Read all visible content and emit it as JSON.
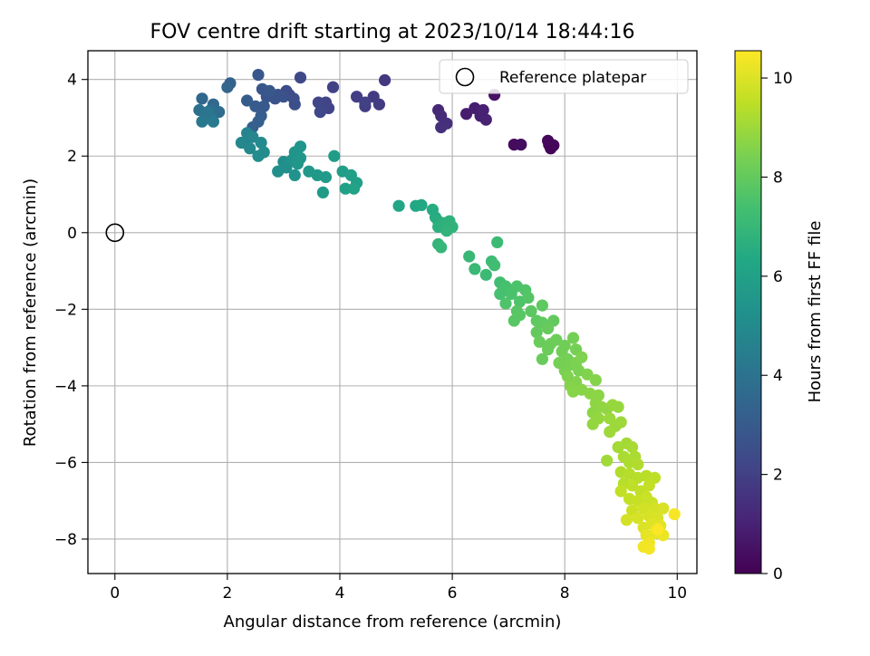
{
  "chart_data": {
    "type": "scatter",
    "title": "FOV centre drift starting at 2023/10/14 18:44:16",
    "xlabel": "Angular distance from reference (arcmin)",
    "ylabel": "Rotation from reference (arcmin)",
    "xlim": [
      -0.48,
      10.35
    ],
    "ylim": [
      -8.9,
      4.75
    ],
    "xticks": [
      0,
      2,
      4,
      6,
      8,
      10
    ],
    "yticks": [
      -8,
      -6,
      -4,
      -2,
      0,
      2,
      4
    ],
    "grid": true,
    "legend": {
      "position": "top-right",
      "entries": [
        "Reference platepar"
      ]
    },
    "reference": {
      "x": 0,
      "y": 0
    },
    "colorbar": {
      "label": "Hours from first FF file",
      "range": [
        0,
        10.55
      ],
      "ticks": [
        0,
        2,
        4,
        6,
        8,
        10
      ],
      "colormap": "viridis"
    },
    "points": [
      [
        7.72,
        2.3,
        0.1
      ],
      [
        7.75,
        2.2,
        0.12
      ],
      [
        7.8,
        2.28,
        0.15
      ],
      [
        7.7,
        2.4,
        0.2
      ],
      [
        7.1,
        2.3,
        0.3
      ],
      [
        7.22,
        2.3,
        0.35
      ],
      [
        6.75,
        3.6,
        0.5
      ],
      [
        6.25,
        3.1,
        0.8
      ],
      [
        6.5,
        3.05,
        0.9
      ],
      [
        6.6,
        2.95,
        1.0
      ],
      [
        6.4,
        3.25,
        0.85
      ],
      [
        6.55,
        3.2,
        0.95
      ],
      [
        5.75,
        3.2,
        1.2
      ],
      [
        5.8,
        3.05,
        1.3
      ],
      [
        5.9,
        2.85,
        1.4
      ],
      [
        5.8,
        2.75,
        1.45
      ],
      [
        4.8,
        3.98,
        1.7
      ],
      [
        4.6,
        3.55,
        1.8
      ],
      [
        4.7,
        3.35,
        1.85
      ],
      [
        4.45,
        3.3,
        1.9
      ],
      [
        4.3,
        3.55,
        1.95
      ],
      [
        4.45,
        3.4,
        2.0
      ],
      [
        3.88,
        3.8,
        2.05
      ],
      [
        3.75,
        3.4,
        2.1
      ],
      [
        3.8,
        3.25,
        2.15
      ],
      [
        3.62,
        3.4,
        2.2
      ],
      [
        3.65,
        3.15,
        2.25
      ],
      [
        3.3,
        4.05,
        2.3
      ],
      [
        3.1,
        3.6,
        2.4
      ],
      [
        3.05,
        3.7,
        2.45
      ],
      [
        3.18,
        3.5,
        2.5
      ],
      [
        3.2,
        3.35,
        2.55
      ],
      [
        3.0,
        3.55,
        2.6
      ],
      [
        2.9,
        3.6,
        2.65
      ],
      [
        2.85,
        3.5,
        2.7
      ],
      [
        2.7,
        3.55,
        2.75
      ],
      [
        2.62,
        3.75,
        2.8
      ],
      [
        2.55,
        4.12,
        2.85
      ],
      [
        2.75,
        3.7,
        2.9
      ],
      [
        2.65,
        3.3,
        2.95
      ],
      [
        2.5,
        3.3,
        3.0
      ],
      [
        2.35,
        3.45,
        3.05
      ],
      [
        2.6,
        3.05,
        3.1
      ],
      [
        2.55,
        2.9,
        3.15
      ],
      [
        2.45,
        2.75,
        3.2
      ],
      [
        2.05,
        3.9,
        3.3
      ],
      [
        2.0,
        3.8,
        3.4
      ],
      [
        1.55,
        3.5,
        3.5
      ],
      [
        1.75,
        3.35,
        3.6
      ],
      [
        1.85,
        3.15,
        3.7
      ],
      [
        1.7,
        3.2,
        3.8
      ],
      [
        1.5,
        3.2,
        3.9
      ],
      [
        1.6,
        3.1,
        4.0
      ],
      [
        1.7,
        3.0,
        4.1
      ],
      [
        1.55,
        2.9,
        4.2
      ],
      [
        1.75,
        2.9,
        4.3
      ],
      [
        1.65,
        3.15,
        4.1
      ],
      [
        2.3,
        2.35,
        4.6
      ],
      [
        2.35,
        2.6,
        4.7
      ],
      [
        2.45,
        2.5,
        4.8
      ],
      [
        2.25,
        2.35,
        4.85
      ],
      [
        2.4,
        2.2,
        4.9
      ],
      [
        2.6,
        2.35,
        5.0
      ],
      [
        2.55,
        2.0,
        5.05
      ],
      [
        2.65,
        2.1,
        5.1
      ],
      [
        3.0,
        1.85,
        5.15
      ],
      [
        3.05,
        1.7,
        5.2
      ],
      [
        2.9,
        1.6,
        5.25
      ],
      [
        3.2,
        1.5,
        5.3
      ],
      [
        3.15,
        1.9,
        5.35
      ],
      [
        3.2,
        2.1,
        5.4
      ],
      [
        3.3,
        2.25,
        5.45
      ],
      [
        3.3,
        1.95,
        5.5
      ],
      [
        3.25,
        1.8,
        5.55
      ],
      [
        3.45,
        1.6,
        5.6
      ],
      [
        3.6,
        1.5,
        5.65
      ],
      [
        3.75,
        1.45,
        5.7
      ],
      [
        3.7,
        1.05,
        5.75
      ],
      [
        3.9,
        2.0,
        5.8
      ],
      [
        4.05,
        1.6,
        5.85
      ],
      [
        4.2,
        1.5,
        5.9
      ],
      [
        4.3,
        1.3,
        5.95
      ],
      [
        4.1,
        1.15,
        6.0
      ],
      [
        4.25,
        1.15,
        6.05
      ],
      [
        5.05,
        0.7,
        6.2
      ],
      [
        5.35,
        0.7,
        6.3
      ],
      [
        5.45,
        0.72,
        6.35
      ],
      [
        5.65,
        0.6,
        6.45
      ],
      [
        5.7,
        0.4,
        6.5
      ],
      [
        5.75,
        0.3,
        6.55
      ],
      [
        5.8,
        0.2,
        6.6
      ],
      [
        5.75,
        0.15,
        6.65
      ],
      [
        5.85,
        0.25,
        6.7
      ],
      [
        5.95,
        0.3,
        6.75
      ],
      [
        6.0,
        0.15,
        6.8
      ],
      [
        5.9,
        0.05,
        6.85
      ],
      [
        5.75,
        -0.3,
        6.9
      ],
      [
        5.8,
        -0.38,
        6.95
      ],
      [
        6.3,
        -0.62,
        7.0
      ],
      [
        6.4,
        -0.95,
        7.05
      ],
      [
        6.6,
        -1.1,
        7.1
      ],
      [
        6.8,
        -0.25,
        7.15
      ],
      [
        6.7,
        -0.75,
        7.2
      ],
      [
        6.75,
        -0.85,
        7.25
      ],
      [
        6.85,
        -1.3,
        7.3
      ],
      [
        6.9,
        -1.5,
        7.35
      ],
      [
        6.85,
        -1.6,
        7.4
      ],
      [
        6.95,
        -1.4,
        7.45
      ],
      [
        7.05,
        -1.6,
        7.5
      ],
      [
        7.15,
        -1.4,
        7.55
      ],
      [
        6.95,
        -1.85,
        7.6
      ],
      [
        7.2,
        -1.8,
        7.6
      ],
      [
        7.3,
        -1.5,
        7.65
      ],
      [
        7.35,
        -1.7,
        7.7
      ],
      [
        7.15,
        -2.05,
        7.75
      ],
      [
        7.1,
        -2.3,
        7.8
      ],
      [
        7.2,
        -2.15,
        7.8
      ],
      [
        7.4,
        -2.05,
        7.85
      ],
      [
        7.6,
        -1.9,
        7.9
      ],
      [
        7.5,
        -2.3,
        7.9
      ],
      [
        7.6,
        -2.35,
        7.95
      ],
      [
        7.5,
        -2.6,
        8.0
      ],
      [
        7.8,
        -2.3,
        8.0
      ],
      [
        7.7,
        -2.5,
        8.05
      ],
      [
        7.55,
        -2.85,
        8.1
      ],
      [
        7.6,
        -3.3,
        8.1
      ],
      [
        7.75,
        -2.9,
        8.15
      ],
      [
        7.7,
        -3.05,
        8.15
      ],
      [
        7.85,
        -2.8,
        8.2
      ],
      [
        7.95,
        -3.1,
        8.25
      ],
      [
        8.0,
        -2.95,
        8.25
      ],
      [
        8.05,
        -3.3,
        8.3
      ],
      [
        8.15,
        -2.75,
        8.3
      ],
      [
        8.2,
        -3.05,
        8.35
      ],
      [
        7.9,
        -3.4,
        8.35
      ],
      [
        8.0,
        -3.6,
        8.4
      ],
      [
        8.1,
        -3.45,
        8.4
      ],
      [
        8.2,
        -3.4,
        8.45
      ],
      [
        8.25,
        -3.6,
        8.45
      ],
      [
        8.3,
        -3.25,
        8.5
      ],
      [
        8.05,
        -3.75,
        8.5
      ],
      [
        8.2,
        -3.9,
        8.55
      ],
      [
        8.4,
        -3.7,
        8.55
      ],
      [
        8.55,
        -3.85,
        8.6
      ],
      [
        8.1,
        -4.0,
        8.6
      ],
      [
        8.15,
        -4.15,
        8.65
      ],
      [
        8.3,
        -4.1,
        8.65
      ],
      [
        8.45,
        -4.2,
        8.7
      ],
      [
        8.6,
        -4.25,
        8.7
      ],
      [
        8.55,
        -4.45,
        8.75
      ],
      [
        8.5,
        -4.7,
        8.75
      ],
      [
        8.65,
        -4.55,
        8.8
      ],
      [
        8.75,
        -4.6,
        8.8
      ],
      [
        8.6,
        -4.85,
        8.85
      ],
      [
        8.5,
        -5.0,
        8.85
      ],
      [
        8.85,
        -4.5,
        8.9
      ],
      [
        8.95,
        -4.55,
        8.9
      ],
      [
        8.8,
        -4.85,
        8.95
      ],
      [
        8.9,
        -5.05,
        8.95
      ],
      [
        9.0,
        -4.95,
        9.0
      ],
      [
        8.8,
        -5.2,
        9.0
      ],
      [
        8.75,
        -5.95,
        9.05
      ],
      [
        8.95,
        -5.6,
        9.1
      ],
      [
        9.1,
        -5.5,
        9.1
      ],
      [
        9.2,
        -5.6,
        9.15
      ],
      [
        9.05,
        -5.85,
        9.2
      ],
      [
        9.25,
        -5.85,
        9.2
      ],
      [
        9.15,
        -6.0,
        9.25
      ],
      [
        9.3,
        -6.05,
        9.3
      ],
      [
        9.0,
        -6.25,
        9.3
      ],
      [
        9.15,
        -6.3,
        9.35
      ],
      [
        9.05,
        -6.55,
        9.4
      ],
      [
        9.3,
        -6.4,
        9.4
      ],
      [
        9.45,
        -6.35,
        9.45
      ],
      [
        9.6,
        -6.4,
        9.5
      ],
      [
        9.2,
        -6.6,
        9.5
      ],
      [
        9.35,
        -6.75,
        9.55
      ],
      [
        9.0,
        -6.75,
        9.55
      ],
      [
        9.5,
        -6.6,
        9.6
      ],
      [
        9.15,
        -6.95,
        9.6
      ],
      [
        9.3,
        -7.0,
        9.65
      ],
      [
        9.45,
        -6.9,
        9.7
      ],
      [
        9.55,
        -7.05,
        9.7
      ],
      [
        9.2,
        -7.25,
        9.75
      ],
      [
        9.4,
        -7.2,
        9.8
      ],
      [
        9.6,
        -7.2,
        9.85
      ],
      [
        9.1,
        -7.5,
        9.85
      ],
      [
        9.3,
        -7.45,
        9.9
      ],
      [
        9.5,
        -7.4,
        9.9
      ],
      [
        9.65,
        -7.45,
        9.95
      ],
      [
        9.75,
        -7.2,
        9.95
      ],
      [
        9.4,
        -7.7,
        10.0
      ],
      [
        9.55,
        -7.6,
        10.05
      ],
      [
        9.7,
        -7.65,
        10.1
      ],
      [
        9.45,
        -7.9,
        10.15
      ],
      [
        9.6,
        -7.85,
        10.2
      ],
      [
        9.75,
        -7.9,
        10.25
      ],
      [
        9.5,
        -8.1,
        10.3
      ],
      [
        9.4,
        -8.2,
        10.35
      ],
      [
        9.5,
        -8.25,
        10.4
      ],
      [
        9.95,
        -7.35,
        10.45
      ],
      [
        9.65,
        -7.75,
        10.5
      ]
    ]
  }
}
